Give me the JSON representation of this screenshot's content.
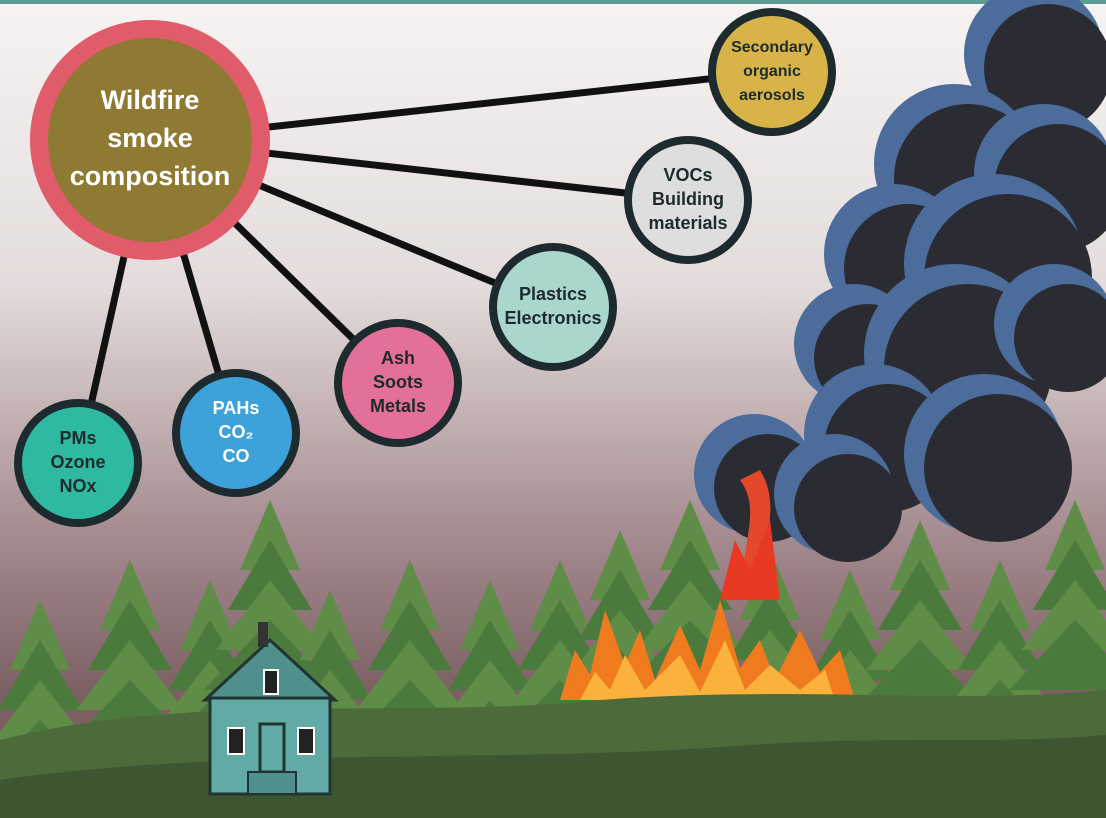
{
  "center": {
    "lines": [
      "Wildfire",
      "smoke",
      "composition"
    ]
  },
  "nodes": [
    {
      "lines": [
        "Secondary",
        "organic",
        "aerosols"
      ]
    },
    {
      "lines": [
        "VOCs",
        "Building",
        "materials"
      ]
    },
    {
      "lines": [
        "Plastics",
        "Electronics"
      ]
    },
    {
      "lines": [
        "Ash",
        "Soots",
        "Metals"
      ]
    },
    {
      "lines": [
        "PAHs",
        "CO₂",
        "CO"
      ]
    },
    {
      "lines": [
        "PMs",
        "Ozone",
        "NOx"
      ]
    }
  ]
}
